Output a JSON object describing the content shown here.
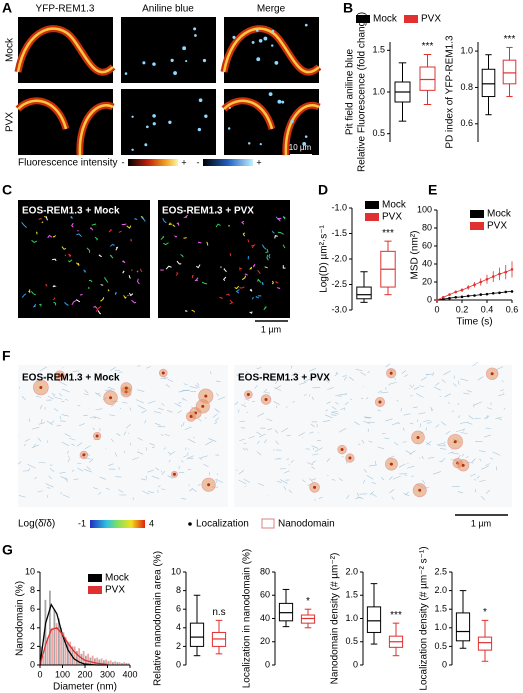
{
  "panel_labels": [
    "A",
    "B",
    "C",
    "D",
    "E",
    "F",
    "G"
  ],
  "panel_a": {
    "columns": [
      "YFP-REM1.3",
      "Aniline blue",
      "Merge"
    ],
    "rows": [
      "Mock",
      "PVX"
    ],
    "colorbar_label": "Fluorescence intensity",
    "colorbars": [
      {
        "min": "-",
        "max": "+"
      },
      {
        "min": "-",
        "max": "+"
      }
    ],
    "scale_bar": "10 µm"
  },
  "panel_c": {
    "images": [
      "EOS-REM1.3 + Mock",
      "EOS-REM1.3 + PVX"
    ],
    "scale_bar": "1 µm"
  },
  "panel_f": {
    "images": [
      "EOS-REM1.3 + Mock",
      "EOS-REM1.3 + PVX"
    ],
    "colorbar_label": "Log(δ̄/δ)",
    "colorbar_min": -1,
    "colorbar_max": 4,
    "localization_legend": "Localization",
    "nanodomain_legend": "Nanodomain",
    "scale_bar": "1 µm"
  },
  "chart_data": [
    {
      "type": "box",
      "ylabel": [
        "Pit field aniline blue",
        "Relative Fluorescence (fold change)"
      ],
      "ylim": [
        0.4,
        1.6
      ],
      "yticks": [
        0.5,
        {
          "value": 1.0,
          "label": "1.0"
        },
        1.5
      ],
      "annotation": "***",
      "series": [
        {
          "name": "Mock",
          "color": "#000000",
          "min": 0.65,
          "q1": 0.88,
          "median": 1.0,
          "q3": 1.12,
          "max": 1.35
        },
        {
          "name": "PVX",
          "color": "#e03030",
          "min": 0.85,
          "q1": 1.02,
          "median": 1.15,
          "q3": 1.3,
          "max": 1.45
        }
      ]
    },
    {
      "type": "box",
      "ylabel": [
        "PD index of YFP-REM1.3"
      ],
      "ylim": [
        0.5,
        1.05
      ],
      "yticks": [
        0.6,
        0.8,
        {
          "value": 1.0,
          "label": "1.0"
        }
      ],
      "annotation": "***",
      "series": [
        {
          "color": "#000000",
          "min": 0.65,
          "q1": 0.75,
          "median": 0.82,
          "q3": 0.9,
          "max": 0.98
        },
        {
          "color": "#e03030",
          "min": 0.75,
          "q1": 0.82,
          "median": 0.88,
          "q3": 0.95,
          "max": 1.02
        }
      ]
    },
    {
      "type": "box",
      "ylabel": [
        "Log(D) µm²·s⁻¹"
      ],
      "ylim": [
        -3.0,
        -1.0
      ],
      "yticks": [
        {
          "value": -3.0,
          "label": "-3.0"
        },
        -2.5,
        {
          "value": -2.0,
          "label": "-2.0"
        },
        -1.5,
        {
          "value": -1.0,
          "label": "-1.0"
        }
      ],
      "annotation": "***",
      "series": [
        {
          "name": "Mock",
          "color": "#000000",
          "min": -2.85,
          "q1": -2.78,
          "median": -2.7,
          "q3": -2.55,
          "max": -2.25
        },
        {
          "name": "PVX",
          "color": "#e03030",
          "min": -2.7,
          "q1": -2.55,
          "median": -2.2,
          "q3": -1.85,
          "max": -1.65
        }
      ]
    },
    {
      "type": "line",
      "ylabel": "MSD (nm²)",
      "xlabel": "Time (s)",
      "xlim": [
        0,
        0.6
      ],
      "xticks": [
        0,
        0.2,
        0.4,
        0.6
      ],
      "ylim": [
        0,
        100
      ],
      "yticks": [
        0,
        20,
        40,
        60,
        80,
        100
      ],
      "x": [
        0,
        0.05,
        0.1,
        0.15,
        0.2,
        0.25,
        0.3,
        0.35,
        0.4,
        0.45,
        0.5,
        0.55,
        0.6
      ],
      "series": [
        {
          "name": "Mock",
          "color": "#000000",
          "values": [
            0,
            1,
            2,
            3,
            3.5,
            4.5,
            5,
            6,
            6.5,
            7.5,
            8,
            9,
            9.5
          ]
        },
        {
          "name": "PVX",
          "color": "#e03030",
          "values": [
            0,
            3,
            6,
            9,
            11,
            14,
            17,
            20,
            23,
            26,
            29,
            31,
            34
          ],
          "errors": [
            0,
            0.5,
            1,
            1.5,
            2,
            2.5,
            3,
            4,
            5,
            6,
            7,
            8,
            9
          ]
        }
      ]
    },
    {
      "type": "histogram",
      "ylabel": "Nanodomain (%)",
      "xlabel": "Diameter (nm)",
      "xlim": [
        0,
        400
      ],
      "xticks": [
        0,
        100,
        200,
        300,
        400
      ],
      "ylim": [
        0,
        10
      ],
      "yticks": [
        0,
        2,
        4,
        6,
        8,
        10
      ],
      "bins": [
        0,
        20,
        40,
        60,
        80,
        100,
        120,
        140,
        160,
        180,
        200,
        220,
        240,
        260,
        280,
        300,
        320,
        340,
        360,
        380,
        400
      ],
      "series": [
        {
          "name": "Mock",
          "color": "#000000",
          "values": [
            2,
            7,
            8,
            6,
            5,
            3.5,
            2.5,
            2,
            1.5,
            1.2,
            1,
            0.8,
            0.7,
            0.6,
            0.5,
            0.4,
            0.3,
            0.3,
            0.2,
            0.2
          ]
        },
        {
          "name": "PVX",
          "color": "#e03030",
          "values": [
            1,
            3,
            4,
            4.5,
            4,
            3,
            2.5,
            2,
            1.8,
            1.5,
            1.2,
            1,
            0.8,
            0.7,
            0.6,
            0.5,
            0.4,
            0.3,
            0.3,
            0.2
          ]
        }
      ],
      "fits": [
        {
          "color": "#000000",
          "x": [
            0,
            25,
            50,
            75,
            100,
            125,
            150,
            175,
            200,
            250,
            300
          ],
          "values": [
            0,
            4.5,
            6.5,
            5.5,
            3.2,
            1.6,
            0.7,
            0.3,
            0.1,
            0,
            0
          ]
        },
        {
          "color": "#e03030",
          "x": [
            0,
            25,
            50,
            75,
            100,
            125,
            150,
            175,
            200,
            250,
            300
          ],
          "values": [
            0,
            2.2,
            3.8,
            4,
            3.3,
            2.3,
            1.5,
            0.9,
            0.5,
            0.2,
            0.05
          ]
        }
      ]
    },
    {
      "type": "box",
      "ylabel": [
        "Relative nanodomain area (%)"
      ],
      "ylim": [
        0,
        10
      ],
      "yticks": [
        0,
        2,
        4,
        6,
        8,
        10
      ],
      "annotation": "n.s",
      "series": [
        {
          "color": "#000000",
          "min": 1,
          "q1": 2,
          "median": 3,
          "q3": 4.5,
          "max": 7.5
        },
        {
          "color": "#e03030",
          "min": 1.2,
          "q1": 2,
          "median": 2.8,
          "q3": 3.5,
          "max": 4.8
        }
      ]
    },
    {
      "type": "box",
      "ylabel": [
        "Localization in nanodomain (%)"
      ],
      "ylim": [
        0,
        80
      ],
      "yticks": [
        0,
        20,
        40,
        60,
        80
      ],
      "annotation": "*",
      "series": [
        {
          "color": "#000000",
          "min": 33,
          "q1": 38,
          "median": 45,
          "q3": 53,
          "max": 65
        },
        {
          "color": "#e03030",
          "min": 32,
          "q1": 36,
          "median": 40,
          "q3": 43,
          "max": 48
        }
      ]
    },
    {
      "type": "box",
      "ylabel": [
        "Nanodomain density (# µm⁻²)"
      ],
      "ylim": [
        0,
        2.0
      ],
      "yticks": [
        0,
        0.5,
        {
          "value": 1.0,
          "label": "1.0"
        },
        1.5,
        {
          "value": 2.0,
          "label": "2.0"
        }
      ],
      "annotation": "***",
      "series": [
        {
          "color": "#000000",
          "min": 0.45,
          "q1": 0.7,
          "median": 0.95,
          "q3": 1.25,
          "max": 1.75
        },
        {
          "color": "#e03030",
          "min": 0.2,
          "q1": 0.38,
          "median": 0.5,
          "q3": 0.62,
          "max": 0.9
        }
      ]
    },
    {
      "type": "box",
      "ylabel": [
        "Localization density (# µm⁻² s⁻¹)"
      ],
      "ylim": [
        0,
        2.5
      ],
      "yticks": [
        0,
        0.5,
        {
          "value": 1.0,
          "label": "1.0"
        },
        1.5,
        {
          "value": 2.0,
          "label": "2.0"
        },
        2.5
      ],
      "annotation": "*",
      "series": [
        {
          "color": "#000000",
          "min": 0.45,
          "q1": 0.65,
          "median": 0.9,
          "q3": 1.4,
          "max": 2.0
        },
        {
          "color": "#e03030",
          "min": 0.1,
          "q1": 0.4,
          "median": 0.6,
          "q3": 0.75,
          "max": 1.2
        }
      ]
    }
  ]
}
